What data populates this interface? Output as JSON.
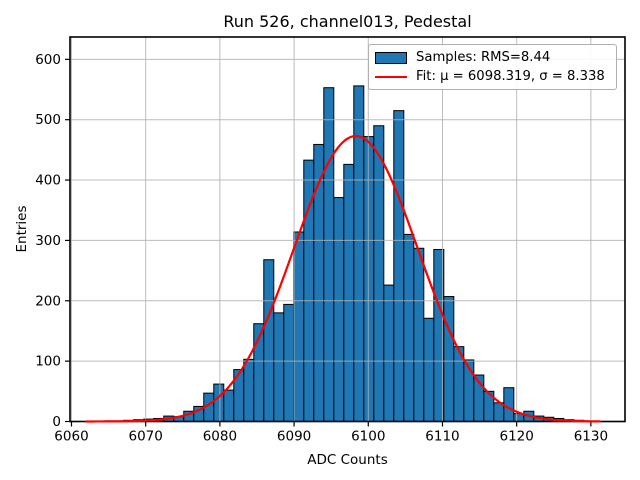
{
  "chart_data": {
    "type": "bar",
    "subtype": "histogram-with-gaussian-fit",
    "title": "Run 526, channel013, Pedestal",
    "xlabel": "ADC Counts",
    "ylabel": "Entries",
    "xlim": [
      6059.8,
      6134.6
    ],
    "ylim": [
      0,
      637
    ],
    "x_ticks": [
      6060,
      6070,
      6080,
      6090,
      6100,
      6110,
      6120,
      6130
    ],
    "y_ticks": [
      0,
      100,
      200,
      300,
      400,
      500,
      600
    ],
    "grid": true,
    "grid_color": "#b0b0b0",
    "background_color": "#ffffff",
    "histogram": {
      "bin_start": 6063.0,
      "bin_width": 1.348,
      "counts": [
        0,
        1,
        1,
        2,
        3,
        4,
        5,
        9,
        8,
        17,
        25,
        47,
        62,
        52,
        86,
        103,
        162,
        268,
        180,
        194,
        314,
        433,
        459,
        553,
        371,
        426,
        556,
        472,
        490,
        226,
        515,
        310,
        287,
        171,
        285,
        207,
        124,
        102,
        77,
        50,
        31,
        56,
        13,
        17,
        9,
        7,
        5,
        3,
        2,
        0
      ],
      "fill_color": "#1f77b4",
      "edge_color": "#000000"
    },
    "fit": {
      "model": "gaussian",
      "amplitude": 473,
      "mu": 6098.319,
      "sigma": 8.338,
      "color": "#ff0000"
    },
    "legend": {
      "position": "upper right",
      "entries": [
        {
          "label": "Samples: RMS=8.44",
          "swatch": "patch",
          "color": "#1f77b4"
        },
        {
          "label": "Fit: μ = 6098.319, σ = 8.338",
          "swatch": "line",
          "color": "#ff0000"
        }
      ]
    }
  }
}
